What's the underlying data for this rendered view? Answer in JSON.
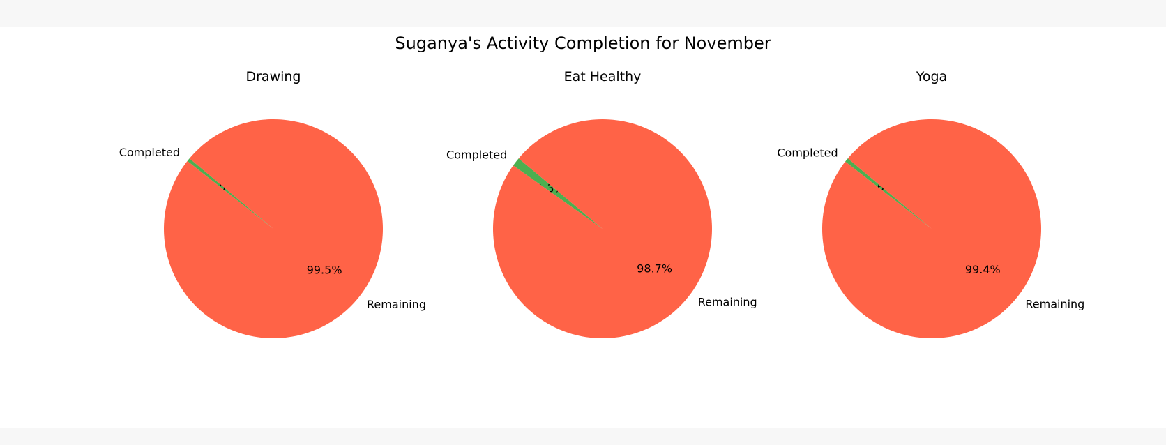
{
  "chart_data": {
    "type": "pie",
    "title": "Suganya's Activity Completion for November",
    "labels": [
      "Completed",
      "Remaining"
    ],
    "colors": {
      "Completed": "#4caf50",
      "Remaining": "#ff6347"
    },
    "pies": [
      {
        "title": "Drawing",
        "values": [
          0.5,
          99.5
        ],
        "pct_labels": [
          "0.5%",
          "99.5%"
        ]
      },
      {
        "title": "Eat Healthy",
        "values": [
          1.3,
          98.7
        ],
        "pct_labels": [
          "1.3%",
          "98.7%"
        ]
      },
      {
        "title": "Yoga",
        "values": [
          0.6,
          99.4
        ],
        "pct_labels": [
          "0.6%",
          "99.4%"
        ]
      }
    ]
  }
}
